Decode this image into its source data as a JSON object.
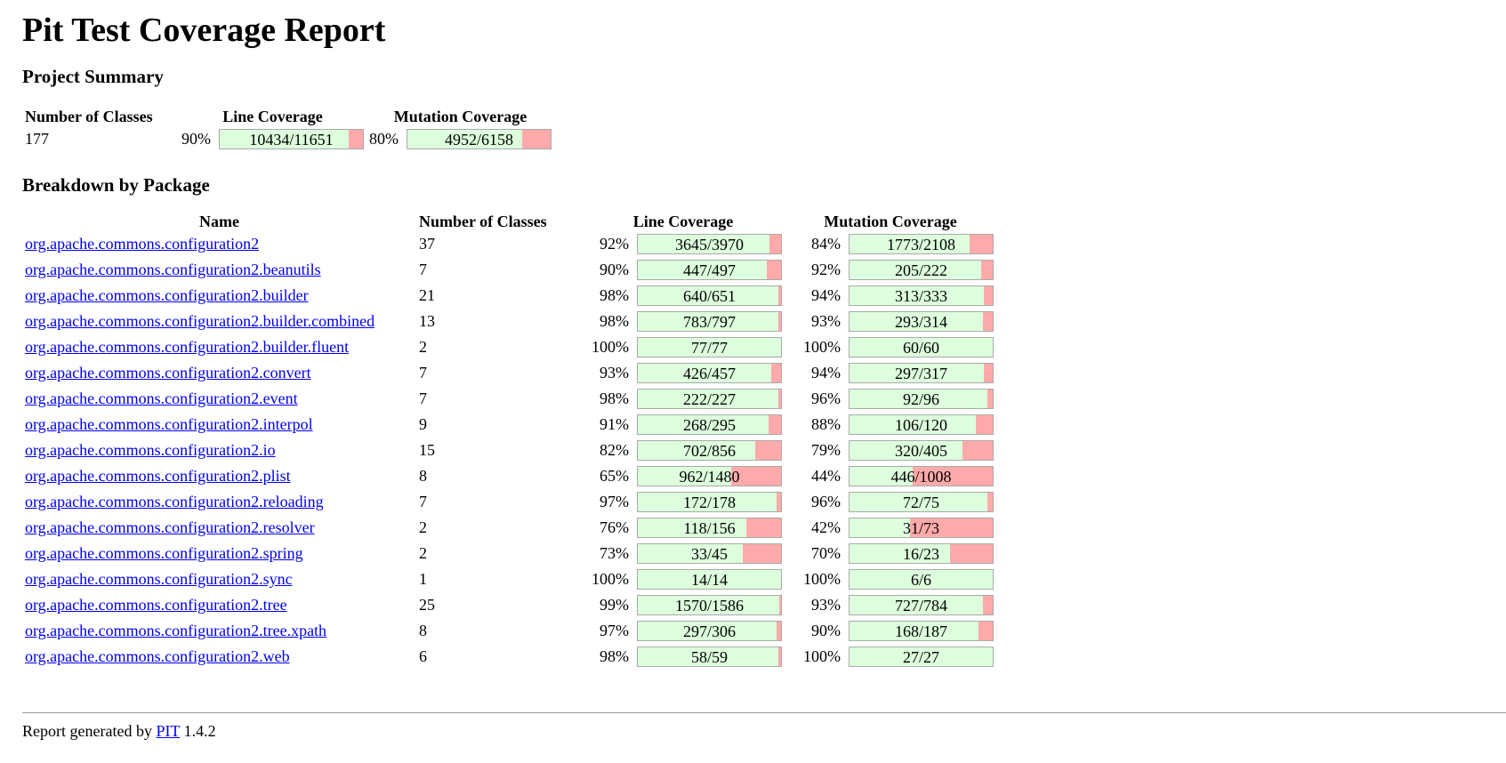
{
  "title": "Pit Test Coverage Report",
  "project_summary": {
    "heading": "Project Summary",
    "headers": {
      "classes": "Number of Classes",
      "line": "Line Coverage",
      "mutation": "Mutation Coverage"
    },
    "classes": "177",
    "line_pct": "90%",
    "line_label": "10434/11651",
    "line_fill": 0.9,
    "mutation_pct": "80%",
    "mutation_label": "4952/6158",
    "mutation_fill": 0.8
  },
  "breakdown": {
    "heading": "Breakdown by Package",
    "headers": {
      "name": "Name",
      "classes": "Number of Classes",
      "line": "Line Coverage",
      "mutation": "Mutation Coverage"
    },
    "rows": [
      {
        "name": "org.apache.commons.configuration2",
        "classes": "37",
        "line_pct": "92%",
        "line_label": "3645/3970",
        "line_fill": 0.92,
        "mut_pct": "84%",
        "mut_label": "1773/2108",
        "mut_fill": 0.84
      },
      {
        "name": "org.apache.commons.configuration2.beanutils",
        "classes": "7",
        "line_pct": "90%",
        "line_label": "447/497",
        "line_fill": 0.9,
        "mut_pct": "92%",
        "mut_label": "205/222",
        "mut_fill": 0.92
      },
      {
        "name": "org.apache.commons.configuration2.builder",
        "classes": "21",
        "line_pct": "98%",
        "line_label": "640/651",
        "line_fill": 0.98,
        "mut_pct": "94%",
        "mut_label": "313/333",
        "mut_fill": 0.94
      },
      {
        "name": "org.apache.commons.configuration2.builder.combined",
        "classes": "13",
        "line_pct": "98%",
        "line_label": "783/797",
        "line_fill": 0.98,
        "mut_pct": "93%",
        "mut_label": "293/314",
        "mut_fill": 0.93
      },
      {
        "name": "org.apache.commons.configuration2.builder.fluent",
        "classes": "2",
        "line_pct": "100%",
        "line_label": "77/77",
        "line_fill": 1.0,
        "mut_pct": "100%",
        "mut_label": "60/60",
        "mut_fill": 1.0
      },
      {
        "name": "org.apache.commons.configuration2.convert",
        "classes": "7",
        "line_pct": "93%",
        "line_label": "426/457",
        "line_fill": 0.93,
        "mut_pct": "94%",
        "mut_label": "297/317",
        "mut_fill": 0.94
      },
      {
        "name": "org.apache.commons.configuration2.event",
        "classes": "7",
        "line_pct": "98%",
        "line_label": "222/227",
        "line_fill": 0.98,
        "mut_pct": "96%",
        "mut_label": "92/96",
        "mut_fill": 0.96
      },
      {
        "name": "org.apache.commons.configuration2.interpol",
        "classes": "9",
        "line_pct": "91%",
        "line_label": "268/295",
        "line_fill": 0.91,
        "mut_pct": "88%",
        "mut_label": "106/120",
        "mut_fill": 0.88
      },
      {
        "name": "org.apache.commons.configuration2.io",
        "classes": "15",
        "line_pct": "82%",
        "line_label": "702/856",
        "line_fill": 0.82,
        "mut_pct": "79%",
        "mut_label": "320/405",
        "mut_fill": 0.79
      },
      {
        "name": "org.apache.commons.configuration2.plist",
        "classes": "8",
        "line_pct": "65%",
        "line_label": "962/1480",
        "line_fill": 0.65,
        "mut_pct": "44%",
        "mut_label": "446/1008",
        "mut_fill": 0.44
      },
      {
        "name": "org.apache.commons.configuration2.reloading",
        "classes": "7",
        "line_pct": "97%",
        "line_label": "172/178",
        "line_fill": 0.97,
        "mut_pct": "96%",
        "mut_label": "72/75",
        "mut_fill": 0.96
      },
      {
        "name": "org.apache.commons.configuration2.resolver",
        "classes": "2",
        "line_pct": "76%",
        "line_label": "118/156",
        "line_fill": 0.76,
        "mut_pct": "42%",
        "mut_label": "31/73",
        "mut_fill": 0.42
      },
      {
        "name": "org.apache.commons.configuration2.spring",
        "classes": "2",
        "line_pct": "73%",
        "line_label": "33/45",
        "line_fill": 0.73,
        "mut_pct": "70%",
        "mut_label": "16/23",
        "mut_fill": 0.7
      },
      {
        "name": "org.apache.commons.configuration2.sync",
        "classes": "1",
        "line_pct": "100%",
        "line_label": "14/14",
        "line_fill": 1.0,
        "mut_pct": "100%",
        "mut_label": "6/6",
        "mut_fill": 1.0
      },
      {
        "name": "org.apache.commons.configuration2.tree",
        "classes": "25",
        "line_pct": "99%",
        "line_label": "1570/1586",
        "line_fill": 0.99,
        "mut_pct": "93%",
        "mut_label": "727/784",
        "mut_fill": 0.93
      },
      {
        "name": "org.apache.commons.configuration2.tree.xpath",
        "classes": "8",
        "line_pct": "97%",
        "line_label": "297/306",
        "line_fill": 0.97,
        "mut_pct": "90%",
        "mut_label": "168/187",
        "mut_fill": 0.9
      },
      {
        "name": "org.apache.commons.configuration2.web",
        "classes": "6",
        "line_pct": "98%",
        "line_label": "58/59",
        "line_fill": 0.98,
        "mut_pct": "100%",
        "mut_label": "27/27",
        "mut_fill": 1.0
      }
    ]
  },
  "footer": {
    "prefix": "Report generated by",
    "link": "PIT",
    "version": "1.4.2"
  },
  "colors": {
    "covered": "#ddffdd",
    "uncovered": "#ffaaaa",
    "link": "#0000ee"
  }
}
